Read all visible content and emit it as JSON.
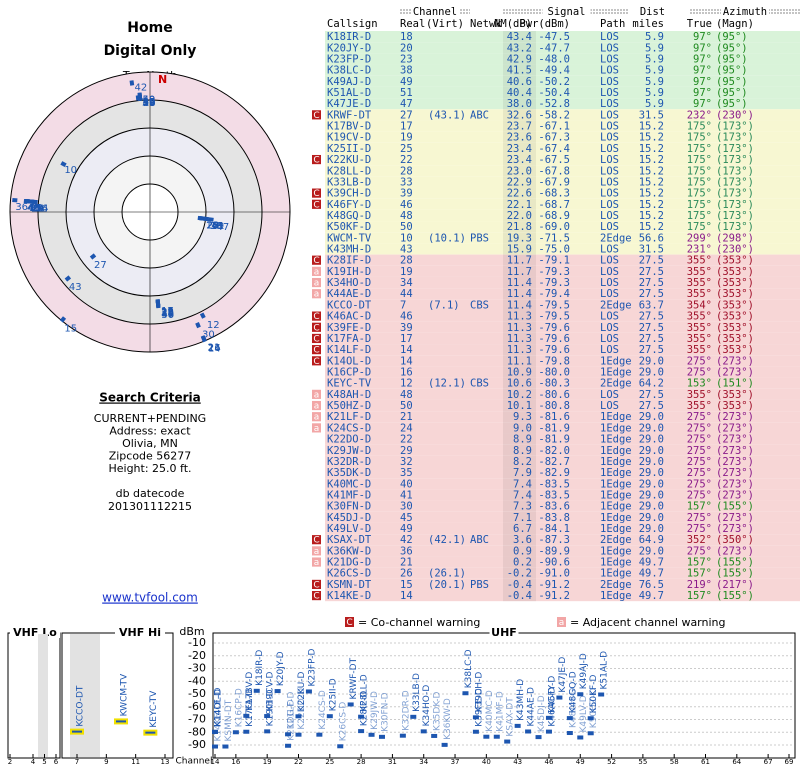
{
  "header": {
    "title": "Home",
    "subtitle": "Digital Only"
  },
  "polar": {
    "north_label": "TrueNorth",
    "n": "N"
  },
  "criteria": {
    "title": "Search Criteria",
    "lines": [
      "CURRENT+PENDING",
      "Address: exact",
      "Olivia, MN",
      "Zipcode 56277",
      "Height: 25.0 ft."
    ],
    "db_label": "db datecode",
    "db": "201301112215",
    "link": "www.tvfool.com"
  },
  "table": {
    "groups": [
      "Channel",
      "Signal",
      "Dist",
      "Azimuth"
    ],
    "columns": [
      "Callsign",
      "Real",
      "(Virt)",
      "Netwk",
      "NM(dB)",
      "Pwr(dBm)",
      "Path",
      "miles",
      "True",
      "(Magn)"
    ],
    "band_colors": {
      "g": "#d9f3d9",
      "y": "#f7f7d2",
      "p": "#f7d6d6"
    },
    "rows": [
      {
        "call": "K18IR-D",
        "real": "18",
        "nm": "43.4",
        "pwr": "-47.5",
        "path": "LOS",
        "dist": "5.9",
        "true": "97°",
        "magn": "(95°)",
        "band": "g",
        "color": "#1f8a1f"
      },
      {
        "call": "K20JY-D",
        "real": "20",
        "nm": "43.2",
        "pwr": "-47.7",
        "path": "LOS",
        "dist": "5.9",
        "true": "97°",
        "magn": "(95°)",
        "band": "g",
        "color": "#1f8a1f"
      },
      {
        "call": "K23FP-D",
        "real": "23",
        "nm": "42.9",
        "pwr": "-48.0",
        "path": "LOS",
        "dist": "5.9",
        "true": "97°",
        "magn": "(95°)",
        "band": "g",
        "color": "#1f8a1f"
      },
      {
        "call": "K38LC-D",
        "real": "38",
        "nm": "41.5",
        "pwr": "-49.4",
        "path": "LOS",
        "dist": "5.9",
        "true": "97°",
        "magn": "(95°)",
        "band": "g",
        "color": "#1f8a1f"
      },
      {
        "call": "K49AJ-D",
        "real": "49",
        "nm": "40.6",
        "pwr": "-50.2",
        "path": "LOS",
        "dist": "5.9",
        "true": "97°",
        "magn": "(95°)",
        "band": "g",
        "color": "#1f8a1f"
      },
      {
        "call": "K51AL-D",
        "real": "51",
        "nm": "40.4",
        "pwr": "-50.4",
        "path": "LOS",
        "dist": "5.9",
        "true": "97°",
        "magn": "(95°)",
        "band": "g",
        "color": "#1f8a1f"
      },
      {
        "call": "K47JE-D",
        "real": "47",
        "nm": "38.0",
        "pwr": "-52.8",
        "path": "LOS",
        "dist": "5.9",
        "true": "97°",
        "magn": "(95°)",
        "band": "g",
        "color": "#1f8a1f"
      },
      {
        "call": "KRWF-DT",
        "real": "27",
        "virt": "(43.1)",
        "netwk": "ABC",
        "nm": "32.6",
        "pwr": "-58.2",
        "path": "LOS",
        "dist": "31.5",
        "true": "232°",
        "magn": "(230°)",
        "band": "y",
        "color": "#8a1a8a",
        "warn": "C"
      },
      {
        "call": "K17BV-D",
        "real": "17",
        "nm": "23.7",
        "pwr": "-67.1",
        "path": "LOS",
        "dist": "15.2",
        "true": "175°",
        "magn": "(173°)",
        "band": "y",
        "color": "#2a8a5a"
      },
      {
        "call": "K19CV-D",
        "real": "19",
        "nm": "23.6",
        "pwr": "-67.3",
        "path": "LOS",
        "dist": "15.2",
        "true": "175°",
        "magn": "(173°)",
        "band": "y",
        "color": "#2a8a5a"
      },
      {
        "call": "K25II-D",
        "real": "25",
        "nm": "23.4",
        "pwr": "-67.4",
        "path": "LOS",
        "dist": "15.2",
        "true": "175°",
        "magn": "(173°)",
        "band": "y",
        "color": "#2a8a5a"
      },
      {
        "call": "K22KU-D",
        "real": "22",
        "nm": "23.4",
        "pwr": "-67.5",
        "path": "LOS",
        "dist": "15.2",
        "true": "175°",
        "magn": "(173°)",
        "band": "y",
        "color": "#2a8a5a",
        "warn": "C"
      },
      {
        "call": "K28LL-D",
        "real": "28",
        "nm": "23.0",
        "pwr": "-67.8",
        "path": "LOS",
        "dist": "15.2",
        "true": "175°",
        "magn": "(173°)",
        "band": "y",
        "color": "#2a8a5a"
      },
      {
        "call": "K33LB-D",
        "real": "33",
        "nm": "22.9",
        "pwr": "-67.9",
        "path": "LOS",
        "dist": "15.2",
        "true": "175°",
        "magn": "(173°)",
        "band": "y",
        "color": "#2a8a5a"
      },
      {
        "call": "K39CH-D",
        "real": "39",
        "nm": "22.6",
        "pwr": "-68.3",
        "path": "LOS",
        "dist": "15.2",
        "true": "175°",
        "magn": "(173°)",
        "band": "y",
        "color": "#2a8a5a",
        "warn": "C"
      },
      {
        "call": "K46FY-D",
        "real": "46",
        "nm": "22.1",
        "pwr": "-68.7",
        "path": "LOS",
        "dist": "15.2",
        "true": "175°",
        "magn": "(173°)",
        "band": "y",
        "color": "#2a8a5a",
        "warn": "C"
      },
      {
        "call": "K48GQ-D",
        "real": "48",
        "nm": "22.0",
        "pwr": "-68.9",
        "path": "LOS",
        "dist": "15.2",
        "true": "175°",
        "magn": "(173°)",
        "band": "y",
        "color": "#2a8a5a"
      },
      {
        "call": "K50KF-D",
        "real": "50",
        "nm": "21.8",
        "pwr": "-69.0",
        "path": "LOS",
        "dist": "15.2",
        "true": "175°",
        "magn": "(173°)",
        "band": "y",
        "color": "#2a8a5a"
      },
      {
        "call": "KWCM-TV",
        "real": "10",
        "virt": "(10.1)",
        "netwk": "PBS",
        "nm": "19.3",
        "pwr": "-71.5",
        "path": "2Edge",
        "dist": "56.6",
        "true": "299°",
        "magn": "(298°)",
        "band": "y",
        "color": "#8a1a8a"
      },
      {
        "call": "K43MH-D",
        "real": "43",
        "nm": "15.9",
        "pwr": "-75.0",
        "path": "LOS",
        "dist": "31.5",
        "true": "231°",
        "magn": "(230°)",
        "band": "y",
        "color": "#8a1a8a"
      },
      {
        "call": "K28IF-D",
        "real": "28",
        "nm": "11.7",
        "pwr": "-79.1",
        "path": "LOS",
        "dist": "27.5",
        "true": "355°",
        "magn": "(353°)",
        "band": "p",
        "color": "#a0102a",
        "warn": "C"
      },
      {
        "call": "K19IH-D",
        "real": "19",
        "nm": "11.7",
        "pwr": "-79.3",
        "path": "LOS",
        "dist": "27.5",
        "true": "355°",
        "magn": "(353°)",
        "band": "p",
        "color": "#a0102a",
        "warn": "a"
      },
      {
        "call": "K34HO-D",
        "real": "34",
        "nm": "11.4",
        "pwr": "-79.3",
        "path": "LOS",
        "dist": "27.5",
        "true": "355°",
        "magn": "(353°)",
        "band": "p",
        "color": "#a0102a",
        "warn": "a"
      },
      {
        "call": "K44AE-D",
        "real": "44",
        "nm": "11.4",
        "pwr": "-79.4",
        "path": "LOS",
        "dist": "27.5",
        "true": "355°",
        "magn": "(353°)",
        "band": "p",
        "color": "#a0102a",
        "warn": "a"
      },
      {
        "call": "KCCO-DT",
        "real": "7",
        "virt": "(7.1)",
        "netwk": "CBS",
        "nm": "11.4",
        "pwr": "-79.5",
        "path": "2Edge",
        "dist": "63.7",
        "true": "354°",
        "magn": "(353°)",
        "band": "p",
        "color": "#a0102a"
      },
      {
        "call": "K46AC-D",
        "real": "46",
        "nm": "11.3",
        "pwr": "-79.5",
        "path": "LOS",
        "dist": "27.5",
        "true": "355°",
        "magn": "(353°)",
        "band": "p",
        "color": "#a0102a",
        "warn": "C"
      },
      {
        "call": "K39FE-D",
        "real": "39",
        "nm": "11.3",
        "pwr": "-79.6",
        "path": "LOS",
        "dist": "27.5",
        "true": "355°",
        "magn": "(353°)",
        "band": "p",
        "color": "#a0102a",
        "warn": "C"
      },
      {
        "call": "K17FA-D",
        "real": "17",
        "nm": "11.3",
        "pwr": "-79.6",
        "path": "LOS",
        "dist": "27.5",
        "true": "355°",
        "magn": "(353°)",
        "band": "p",
        "color": "#a0102a",
        "warn": "C"
      },
      {
        "call": "K14LF-D",
        "real": "14",
        "nm": "11.3",
        "pwr": "-79.6",
        "path": "LOS",
        "dist": "27.5",
        "true": "355°",
        "magn": "(353°)",
        "band": "p",
        "color": "#a0102a",
        "warn": "C"
      },
      {
        "call": "K14OL-D",
        "real": "14",
        "nm": "11.1",
        "pwr": "-79.8",
        "path": "1Edge",
        "dist": "29.0",
        "true": "275°",
        "magn": "(273°)",
        "band": "p",
        "color": "#8a1a8a",
        "warn": "C"
      },
      {
        "call": "K16CP-D",
        "real": "16",
        "nm": "10.9",
        "pwr": "-80.0",
        "path": "1Edge",
        "dist": "29.0",
        "true": "275°",
        "magn": "(273°)",
        "band": "p",
        "color": "#8a1a8a"
      },
      {
        "call": "KEYC-TV",
        "real": "12",
        "virt": "(12.1)",
        "netwk": "CBS",
        "nm": "10.6",
        "pwr": "-80.3",
        "path": "2Edge",
        "dist": "64.2",
        "true": "153°",
        "magn": "(151°)",
        "band": "p",
        "color": "#1f8a1f"
      },
      {
        "call": "K48AH-D",
        "real": "48",
        "nm": "10.2",
        "pwr": "-80.6",
        "path": "LOS",
        "dist": "27.5",
        "true": "355°",
        "magn": "(353°)",
        "band": "p",
        "color": "#a0102a",
        "warn": "a"
      },
      {
        "call": "K50HZ-D",
        "real": "50",
        "nm": "10.1",
        "pwr": "-80.8",
        "path": "LOS",
        "dist": "27.5",
        "true": "355°",
        "magn": "(353°)",
        "band": "p",
        "color": "#a0102a",
        "warn": "a"
      },
      {
        "call": "K21LF-D",
        "real": "21",
        "nm": "9.3",
        "pwr": "-81.6",
        "path": "1Edge",
        "dist": "29.0",
        "true": "275°",
        "magn": "(273°)",
        "band": "p",
        "color": "#8a1a8a",
        "warn": "a"
      },
      {
        "call": "K24CS-D",
        "real": "24",
        "nm": "9.0",
        "pwr": "-81.9",
        "path": "1Edge",
        "dist": "29.0",
        "true": "275°",
        "magn": "(273°)",
        "band": "p",
        "color": "#8a1a8a",
        "warn": "a"
      },
      {
        "call": "K22DO-D",
        "real": "22",
        "nm": "8.9",
        "pwr": "-81.9",
        "path": "1Edge",
        "dist": "29.0",
        "true": "275°",
        "magn": "(273°)",
        "band": "p",
        "color": "#8a1a8a"
      },
      {
        "call": "K29JW-D",
        "real": "29",
        "nm": "8.9",
        "pwr": "-82.0",
        "path": "1Edge",
        "dist": "29.0",
        "true": "275°",
        "magn": "(273°)",
        "band": "p",
        "color": "#8a1a8a"
      },
      {
        "call": "K32DR-D",
        "real": "32",
        "nm": "8.2",
        "pwr": "-82.7",
        "path": "1Edge",
        "dist": "29.0",
        "true": "275°",
        "magn": "(273°)",
        "band": "p",
        "color": "#8a1a8a"
      },
      {
        "call": "K35DK-D",
        "real": "35",
        "nm": "7.9",
        "pwr": "-82.9",
        "path": "1Edge",
        "dist": "29.0",
        "true": "275°",
        "magn": "(273°)",
        "band": "p",
        "color": "#8a1a8a"
      },
      {
        "call": "K40MC-D",
        "real": "40",
        "nm": "7.4",
        "pwr": "-83.5",
        "path": "1Edge",
        "dist": "29.0",
        "true": "275°",
        "magn": "(273°)",
        "band": "p",
        "color": "#8a1a8a"
      },
      {
        "call": "K41MF-D",
        "real": "41",
        "nm": "7.4",
        "pwr": "-83.5",
        "path": "1Edge",
        "dist": "29.0",
        "true": "275°",
        "magn": "(273°)",
        "band": "p",
        "color": "#8a1a8a"
      },
      {
        "call": "K30FN-D",
        "real": "30",
        "nm": "7.3",
        "pwr": "-83.6",
        "path": "1Edge",
        "dist": "29.0",
        "true": "157°",
        "magn": "(155°)",
        "band": "p",
        "color": "#1f8a1f"
      },
      {
        "call": "K45DJ-D",
        "real": "45",
        "nm": "7.1",
        "pwr": "-83.8",
        "path": "1Edge",
        "dist": "29.0",
        "true": "275°",
        "magn": "(273°)",
        "band": "p",
        "color": "#8a1a8a"
      },
      {
        "call": "K49LV-D",
        "real": "49",
        "nm": "6.7",
        "pwr": "-84.1",
        "path": "1Edge",
        "dist": "29.0",
        "true": "275°",
        "magn": "(273°)",
        "band": "p",
        "color": "#8a1a8a"
      },
      {
        "call": "KSAX-DT",
        "real": "42",
        "virt": "(42.1)",
        "netwk": "ABC",
        "nm": "3.6",
        "pwr": "-87.3",
        "path": "2Edge",
        "dist": "64.9",
        "true": "352°",
        "magn": "(350°)",
        "band": "p",
        "color": "#a0102a",
        "warn": "C"
      },
      {
        "call": "K36KW-D",
        "real": "36",
        "nm": "0.9",
        "pwr": "-89.9",
        "path": "1Edge",
        "dist": "29.0",
        "true": "275°",
        "magn": "(273°)",
        "band": "p",
        "color": "#8a1a8a",
        "warn": "a"
      },
      {
        "call": "K21DG-D",
        "real": "21",
        "nm": "0.2",
        "pwr": "-90.6",
        "path": "1Edge",
        "dist": "49.7",
        "true": "157°",
        "magn": "(155°)",
        "band": "p",
        "color": "#1f8a1f",
        "warn": "a"
      },
      {
        "call": "K26CS-D",
        "real": "26",
        "virt": "(26.1)",
        "nm": "-0.2",
        "pwr": "-91.0",
        "path": "1Edge",
        "dist": "49.7",
        "true": "157°",
        "magn": "(155°)",
        "band": "p",
        "color": "#1f8a1f"
      },
      {
        "call": "KSMN-DT",
        "real": "15",
        "virt": "(20.1)",
        "netwk": "PBS",
        "nm": "-0.4",
        "pwr": "-91.2",
        "path": "2Edge",
        "dist": "76.5",
        "true": "219°",
        "magn": "(217°)",
        "band": "p",
        "color": "#8a1a8a",
        "warn": "C"
      },
      {
        "call": "K14KE-D",
        "real": "14",
        "nm": "-0.4",
        "pwr": "-91.2",
        "path": "1Edge",
        "dist": "49.7",
        "true": "157°",
        "magn": "(155°)",
        "band": "p",
        "color": "#1f8a1f",
        "warn": "C"
      }
    ]
  },
  "legend": {
    "co_mark": "C",
    "co": "= Co-channel warning",
    "adj_mark": "a",
    "adj": "= Adjacent channel warning"
  },
  "spectrum": {
    "panels": [
      "VHF Lo",
      "VHF Hi",
      "UHF"
    ],
    "y_label": "dBm",
    "x_label": "Channel",
    "ylim": [
      -10,
      -90
    ],
    "yticks": [
      -10,
      -20,
      -30,
      -40,
      -50,
      -60,
      -70,
      -80,
      -90
    ],
    "lo_ticks": [
      2,
      4,
      5,
      6
    ],
    "hi_ticks": [
      7,
      9,
      11,
      13
    ],
    "uhf_ticks": [
      14,
      16,
      19,
      22,
      25,
      28,
      31,
      34,
      37,
      40,
      43,
      46,
      49,
      52,
      55,
      58,
      61,
      64,
      67,
      69
    ]
  }
}
